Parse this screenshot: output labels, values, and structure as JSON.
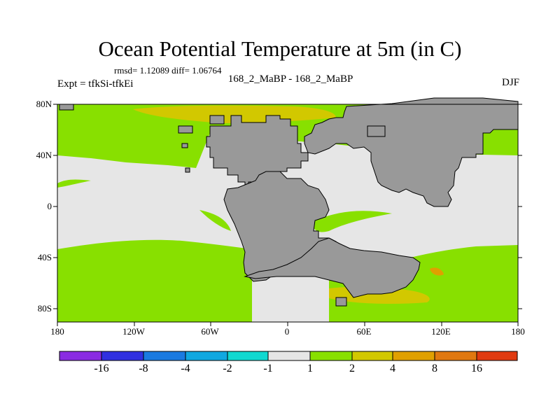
{
  "title": "Ocean Potential Temperature at 5m (in C)",
  "stats": "rmsd= 1.12089 diff= 1.06764",
  "subtitle": "168_2_MaBP - 168_2_MaBP",
  "expt": "Expt = tfkSi-tfkEi",
  "season": "DJF",
  "map": {
    "lat_labels": [
      "80N",
      "40N",
      "0",
      "40S",
      "80S"
    ],
    "lon_labels": [
      "180",
      "120W",
      "60W",
      "0",
      "60E",
      "120E",
      "180"
    ],
    "land_color": "#999999",
    "colors": {
      "near_zero": "#e6e6e6",
      "warm1": "#88e000",
      "warm2": "#d2c800",
      "warm3": "#e0a000"
    }
  },
  "colorbar": {
    "colors": [
      "#8a2be2",
      "#3030e0",
      "#1a7ae0",
      "#10a8e0",
      "#10d8d0",
      "#e6e6e6",
      "#88e000",
      "#d2c800",
      "#e0a000",
      "#e07810",
      "#e03a10"
    ],
    "labels": [
      "-16",
      "-8",
      "-4",
      "-2",
      "-1",
      "1",
      "2",
      "4",
      "8",
      "16"
    ]
  }
}
